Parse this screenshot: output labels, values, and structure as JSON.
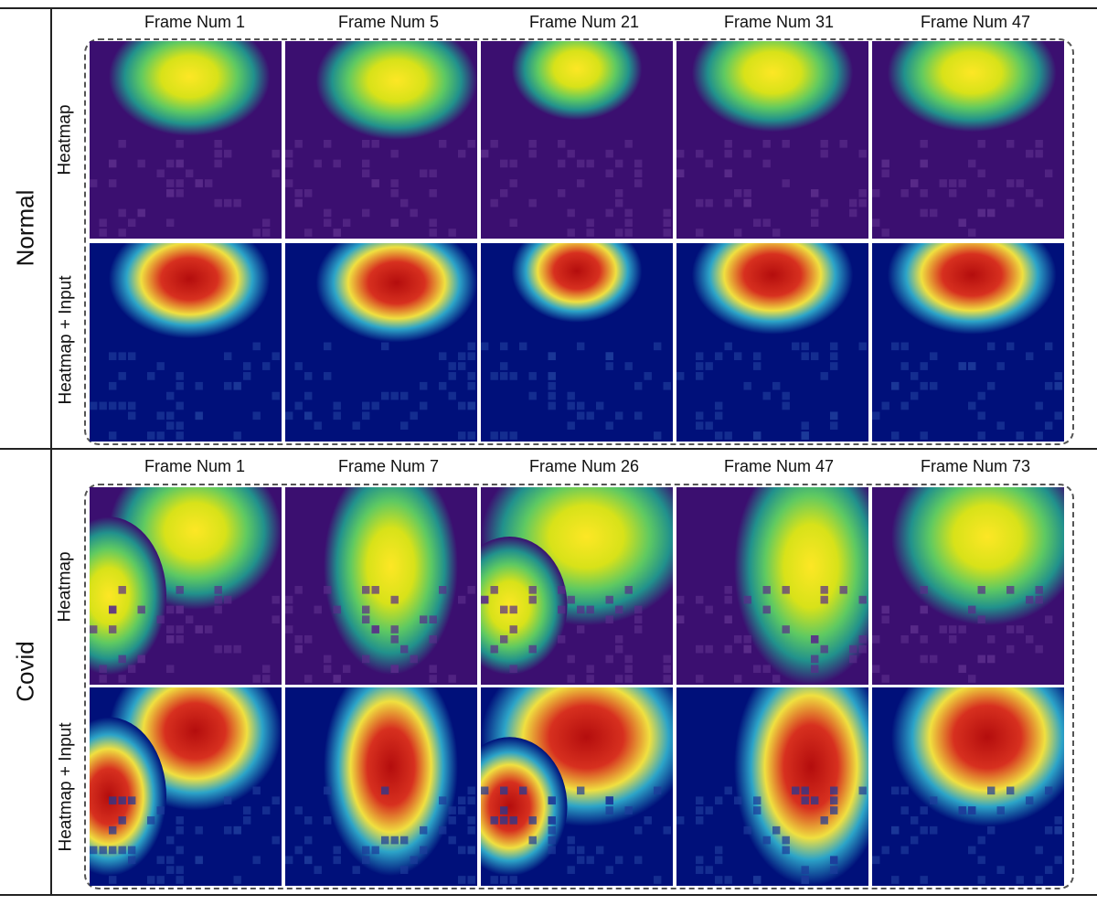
{
  "sections": [
    {
      "label": "Normal",
      "row_labels": [
        "Heatmap",
        "Heatmap + Input"
      ],
      "frames": [
        "Frame Num 1",
        "Frame Num 5",
        "Frame Num 21",
        "Frame Num 31",
        "Frame Num 47"
      ]
    },
    {
      "label": "Covid",
      "row_labels": [
        "Heatmap",
        "Heatmap + Input"
      ],
      "frames": [
        "Frame Num 1",
        "Frame Num 7",
        "Frame Num 26",
        "Frame Num 47",
        "Frame Num 73"
      ]
    }
  ],
  "colors": {
    "heatmap_low": "#3b0f70",
    "heatmap_mid": "#21918c",
    "heatmap_high": "#fde725",
    "overlay_low": "#00107a",
    "overlay_high": "#d7301f",
    "divider": "#222222",
    "dashed_box": "#555555"
  }
}
